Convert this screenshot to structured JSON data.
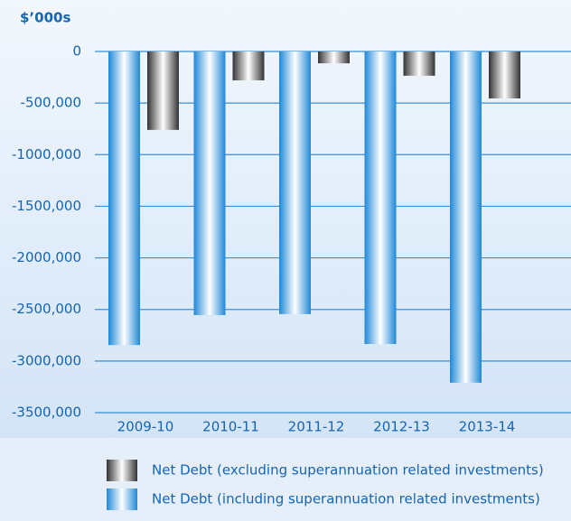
{
  "chart_data": {
    "type": "bar",
    "title": "$’000s",
    "categories": [
      "2009-10",
      "2010-11",
      "2011-12",
      "2012-13",
      "2013-14"
    ],
    "series": [
      {
        "name": "Net Debt (including superannuation related investments)",
        "color": "#1e88d8",
        "values": [
          -2845000,
          -2555000,
          -2545000,
          -2835000,
          -3210000
        ]
      },
      {
        "name": "Net Debt (excluding superannuation related investments)",
        "color": "#333333",
        "values": [
          -760000,
          -280000,
          -115000,
          -235000,
          -455000
        ]
      }
    ],
    "ylim": [
      -3500000,
      0
    ],
    "yticks": [
      0,
      {
        "value": -500000,
        "label": "-500,000"
      },
      {
        "value": -1000000,
        "label": "-1000,000"
      },
      {
        "value": -1500000,
        "label": "-1500,000"
      },
      {
        "value": -2000000,
        "label": "-2000,000"
      },
      {
        "value": -2500000,
        "label": "-2500,000"
      },
      {
        "value": -3000000,
        "label": "-3000,000"
      },
      {
        "value": -3500000,
        "label": "-3500,000"
      }
    ],
    "grid": true
  }
}
